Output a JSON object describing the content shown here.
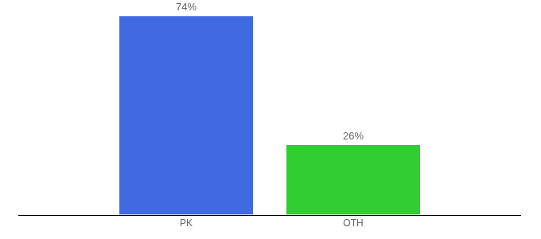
{
  "chart_data": {
    "type": "bar",
    "categories": [
      "PK",
      "OTH"
    ],
    "values": [
      74,
      26
    ],
    "value_labels": [
      "74%",
      "26%"
    ],
    "colors": [
      "#4169e1",
      "#32cd32"
    ],
    "ylim": [
      0,
      80
    ],
    "grid": false,
    "data_labels": true,
    "tick_labels": "x"
  }
}
